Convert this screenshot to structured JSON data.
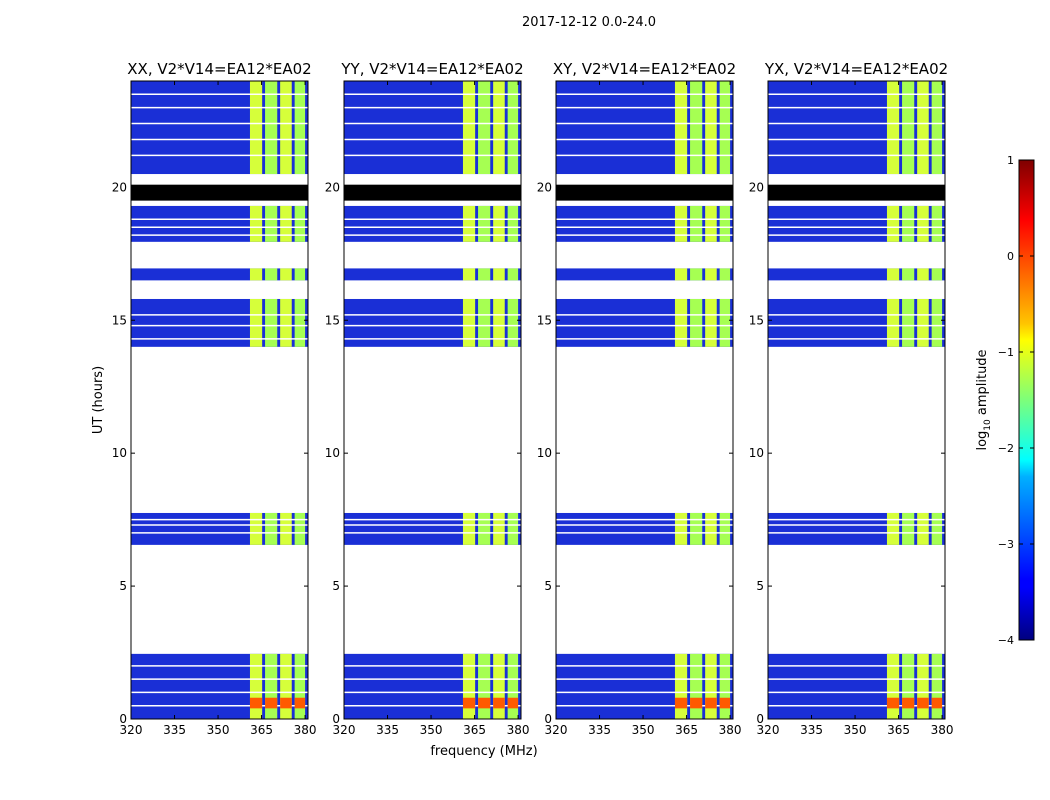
{
  "suptitle": "2017-12-12 0.0-24.0",
  "colorbar": {
    "label": "log10 amplitude",
    "label_main": "log",
    "label_sub": "10",
    "label_rest": " amplitude",
    "range": [
      -4,
      1
    ],
    "ticks": [
      -4,
      -3,
      -2,
      -1,
      0,
      1
    ],
    "tick_labels": [
      "−4",
      "−3",
      "−2",
      "−1",
      "0",
      "1"
    ],
    "colormap": "jet"
  },
  "chart_data": {
    "type": "heatmap",
    "title": "2017-12-12 0.0-24.0",
    "xlabel": "frequency (MHz)",
    "ylabel": "UT (hours)",
    "xlim": [
      320,
      381
    ],
    "ylim": [
      0,
      24
    ],
    "xticks": [
      320,
      335,
      350,
      365,
      380
    ],
    "yticks": [
      0,
      5,
      10,
      15,
      20
    ],
    "colorbar_range": [
      -4,
      1
    ],
    "panels": [
      {
        "title": "XX, V2*V14=EA12*EA02",
        "polarization": "XX"
      },
      {
        "title": "YY, V2*V14=EA12*EA02",
        "polarization": "YY"
      },
      {
        "title": "XY, V2*V14=EA12*EA02",
        "polarization": "XY"
      },
      {
        "title": "YX, V2*V14=EA12*EA02",
        "polarization": "YX"
      }
    ],
    "data_blocks_ut_hours": [
      [
        0.0,
        2.45
      ],
      [
        6.55,
        7.75
      ],
      [
        14.0,
        15.8
      ],
      [
        16.5,
        16.95
      ],
      [
        17.95,
        19.3
      ],
      [
        20.5,
        24.0
      ]
    ],
    "flagged_black_ut_hours": [
      [
        19.5,
        20.1
      ]
    ],
    "strong_band_mhz": [
      361,
      380
    ],
    "strong_band_segments_mhz": [
      [
        361,
        365.2
      ],
      [
        366.2,
        370.4
      ],
      [
        371.4,
        375.4
      ],
      [
        376.4,
        380
      ]
    ],
    "peak_emission": {
      "ut_hours": [
        0.4,
        0.8
      ],
      "log10_amplitude": 0.3
    }
  }
}
